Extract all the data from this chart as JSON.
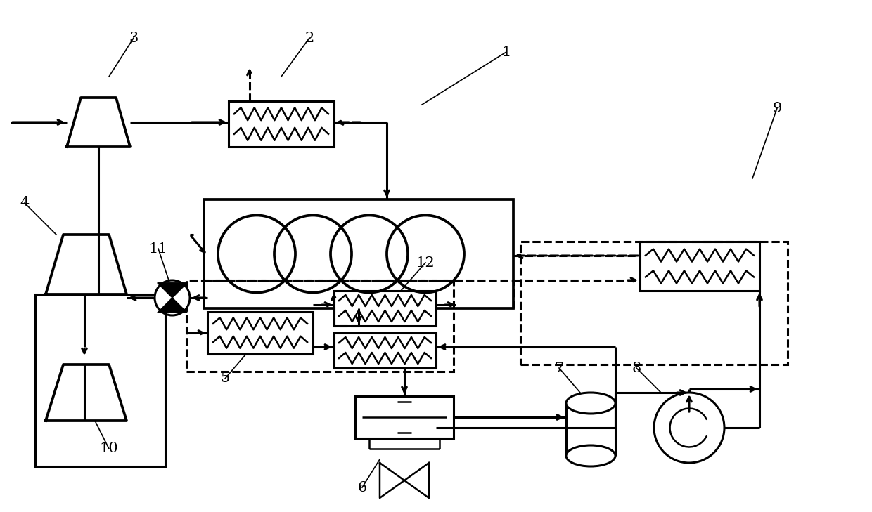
{
  "bg_color": "#ffffff",
  "lc": "#000000",
  "lw": 2.2,
  "lw_thin": 1.8,
  "fig_w": 12.4,
  "fig_h": 7.29,
  "dpi": 100
}
